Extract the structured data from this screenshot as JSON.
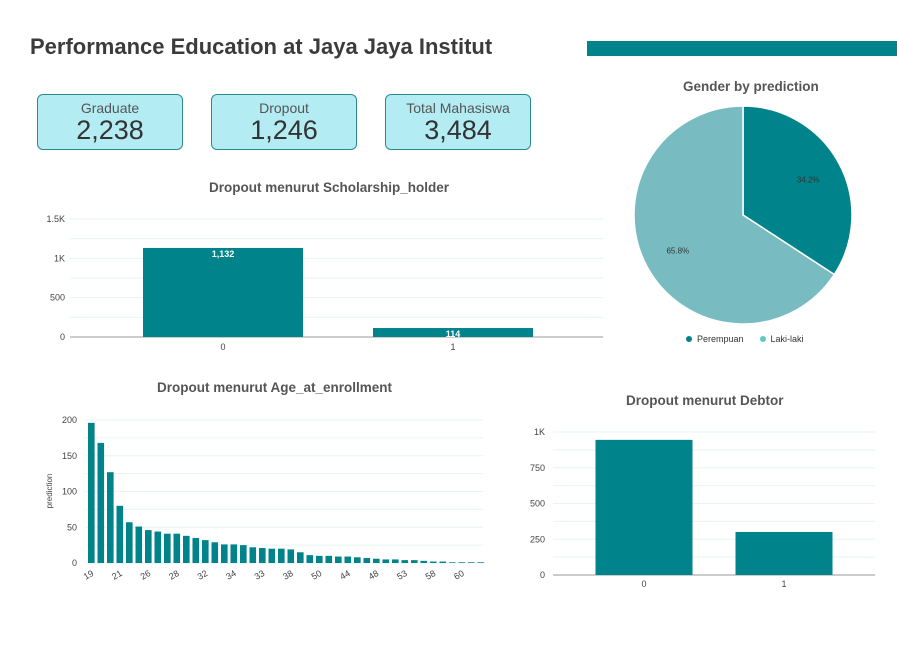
{
  "header": {
    "title": "Performance Education at Jaya Jaya Institut",
    "accent_color": "#00838a"
  },
  "kpis": [
    {
      "label": "Graduate",
      "value": "2,238"
    },
    {
      "label": "Dropout",
      "value": "1,246"
    },
    {
      "label": "Total Mahasiswa",
      "value": "3,484"
    }
  ],
  "colors": {
    "primary": "#00838a",
    "secondary": "#78bcc2",
    "card_bg": "#b4ecf3",
    "grid": "#e6f5f6"
  },
  "chart_data": [
    {
      "type": "bar",
      "title": "Dropout menurut Scholarship_holder",
      "categories": [
        "0",
        "1"
      ],
      "values": [
        1132,
        114
      ],
      "value_labels": [
        "1,132",
        "114"
      ],
      "yticks": [
        "0",
        "500",
        "1K",
        "1.5K"
      ],
      "ylim": [
        0,
        1500
      ],
      "grid": true
    },
    {
      "type": "pie",
      "title": "Gender by prediction",
      "labels": [
        "Perempuan",
        "Laki-laki"
      ],
      "values": [
        34.2,
        65.8
      ],
      "value_labels": [
        "34.2%",
        "65.8%"
      ],
      "colors": [
        "#00838a",
        "#78bcc2"
      ],
      "legend": "bottom"
    },
    {
      "type": "bar",
      "title": "Dropout menurut Age_at_enrollment",
      "ylabel": "prediction",
      "values": [
        196,
        168,
        127,
        80,
        57,
        51,
        46,
        44,
        41,
        41,
        38,
        35,
        32,
        29,
        26,
        26,
        25,
        22,
        21,
        20,
        20,
        19,
        15,
        11,
        10,
        10,
        9,
        9,
        8,
        7,
        6,
        5,
        5,
        4,
        4,
        3,
        2,
        2,
        1,
        1,
        1,
        1
      ],
      "xtick_labels": [
        "19",
        "21",
        "26",
        "28",
        "32",
        "34",
        "33",
        "38",
        "50",
        "44",
        "48",
        "53",
        "58",
        "60"
      ],
      "yticks": [
        "0",
        "50",
        "100",
        "150",
        "200"
      ],
      "ylim": [
        0,
        200
      ],
      "grid": true
    },
    {
      "type": "bar",
      "title": "Dropout menurut Debtor",
      "categories": [
        "0",
        "1"
      ],
      "values": [
        945,
        301
      ],
      "yticks": [
        "0",
        "250",
        "500",
        "750",
        "1K"
      ],
      "ylim": [
        0,
        1000
      ],
      "grid": true
    }
  ]
}
